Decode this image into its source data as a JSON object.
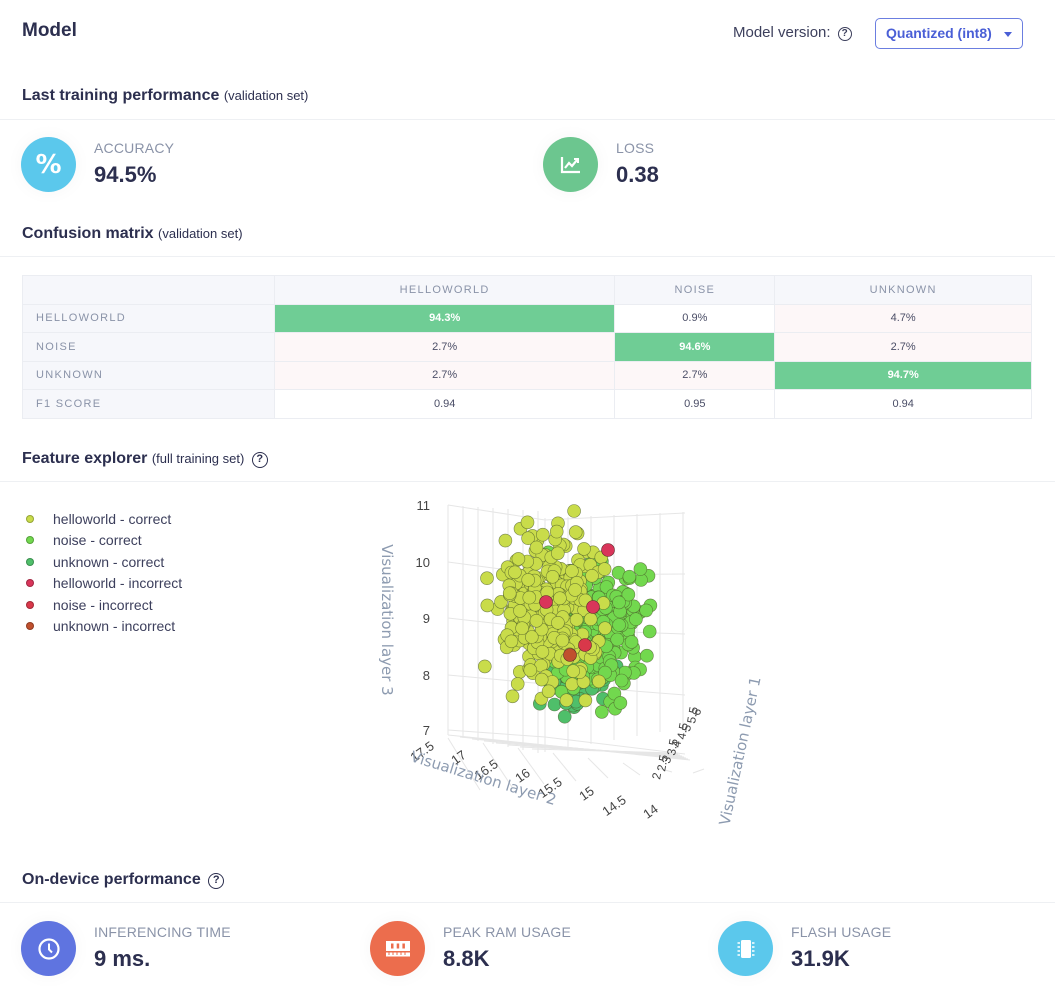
{
  "header": {
    "title": "Model",
    "version_label": "Model version:",
    "version_help": "?",
    "version_selected": "Quantized (int8)"
  },
  "training": {
    "title": "Last training performance",
    "subtitle": "(validation set)",
    "accuracy": {
      "label": "ACCURACY",
      "value": "94.5%",
      "icon": "percent-icon",
      "color": "#5bc8ec"
    },
    "loss": {
      "label": "LOSS",
      "value": "0.38",
      "icon": "chart-line-icon",
      "color": "#6cc68f"
    }
  },
  "confusion": {
    "title": "Confusion matrix",
    "subtitle": "(validation set)",
    "columns": [
      "HELLOWORLD",
      "NOISE",
      "UNKNOWN"
    ],
    "rows": [
      {
        "label": "HELLOWORLD",
        "cells": [
          "94.3%",
          "0.9%",
          "4.7%"
        ]
      },
      {
        "label": "NOISE",
        "cells": [
          "2.7%",
          "94.6%",
          "2.7%"
        ]
      },
      {
        "label": "UNKNOWN",
        "cells": [
          "2.7%",
          "2.7%",
          "94.7%"
        ]
      },
      {
        "label": "F1 SCORE",
        "cells": [
          "0.94",
          "0.95",
          "0.94"
        ]
      }
    ],
    "highlight_color": "#6fcd95"
  },
  "explorer": {
    "title": "Feature explorer",
    "subtitle": "(full training set)",
    "legend": [
      {
        "label": "helloworld - correct",
        "color": "#c9dc4a"
      },
      {
        "label": "noise - correct",
        "color": "#72d84e"
      },
      {
        "label": "unknown - correct",
        "color": "#4fbf6a"
      },
      {
        "label": "helloworld - incorrect",
        "color": "#d9355a"
      },
      {
        "label": "noise - incorrect",
        "color": "#d9384a"
      },
      {
        "label": "unknown - incorrect",
        "color": "#c0502e"
      }
    ]
  },
  "chart_data": {
    "type": "scatter",
    "dimensions": 3,
    "title": "",
    "xlabel": "Visualization layer 1",
    "ylabel": "Visualization layer 2",
    "zlabel": "Visualization layer 3",
    "x_ticks": [
      "2",
      "2.5",
      "3",
      "3.5",
      "4",
      "4.5",
      "5",
      "5.5",
      "6"
    ],
    "y_ticks": [
      "17.5",
      "17",
      "16.5",
      "16",
      "15.5",
      "15",
      "14.5",
      "14"
    ],
    "z_ticks": [
      "11",
      "10",
      "9",
      "8",
      "7"
    ],
    "xlim": [
      2,
      6
    ],
    "ylim": [
      14,
      17.5
    ],
    "zlim": [
      7,
      11
    ],
    "series": [
      {
        "name": "helloworld - correct",
        "approx_count": 300,
        "center": [
          3.2,
          16.2,
          9.3
        ]
      },
      {
        "name": "noise - correct",
        "approx_count": 300,
        "center": [
          4.4,
          15.2,
          8.8
        ]
      },
      {
        "name": "unknown - correct",
        "approx_count": 160,
        "center": [
          4.0,
          15.0,
          8.2
        ]
      },
      {
        "name": "helloworld - incorrect",
        "approx_count": 3,
        "center": [
          3.6,
          15.6,
          9.2
        ]
      },
      {
        "name": "noise - incorrect",
        "approx_count": 2,
        "center": [
          3.8,
          15.4,
          8.4
        ]
      },
      {
        "name": "unknown - incorrect",
        "approx_count": 1,
        "center": [
          4.0,
          15.3,
          8.4
        ]
      }
    ]
  },
  "device": {
    "title": "On-device performance",
    "help": "?",
    "inferencing": {
      "label": "INFERENCING TIME",
      "value": "9 ms.",
      "icon": "clock-icon",
      "color": "#5f74e0"
    },
    "ram": {
      "label": "PEAK RAM USAGE",
      "value": "8.8K",
      "icon": "memory-icon",
      "color": "#ec6d4d"
    },
    "flash": {
      "label": "FLASH USAGE",
      "value": "31.9K",
      "icon": "chip-icon",
      "color": "#5bc8ec"
    }
  }
}
